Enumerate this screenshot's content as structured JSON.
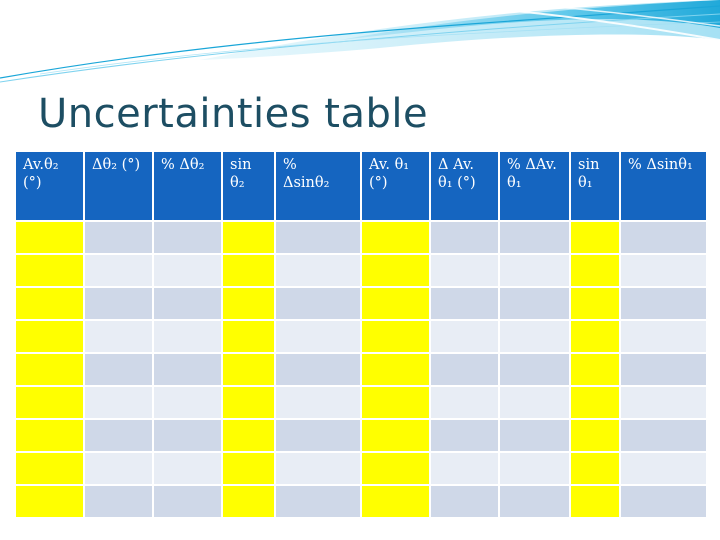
{
  "slide": {
    "title": "Uncertainties table"
  },
  "table": {
    "headers": [
      {
        "line1": "Av.θ₂",
        "line2": "(°)"
      },
      {
        "line1": "Δθ₂ (°)",
        "line2": ""
      },
      {
        "line1": "% Δθ₂",
        "line2": ""
      },
      {
        "line1": "sin",
        "line2": "θ₂"
      },
      {
        "line1": "%",
        "line2": "Δsinθ₂"
      },
      {
        "line1": "Av. θ₁",
        "line2": "(°)"
      },
      {
        "line1": "Δ Av.",
        "line2": "θ₁ (°)"
      },
      {
        "line1": "% ΔAv.",
        "line2": "θ₁"
      },
      {
        "line1": "sin",
        "line2": "θ₁"
      },
      {
        "line1": "% Δsinθ₁",
        "line2": ""
      }
    ],
    "highlight_columns": [
      0,
      3,
      5,
      8
    ],
    "empty_row_count": 9
  },
  "colors": {
    "header_bg": "#1565c0",
    "header_text": "#ffffff",
    "highlight": "#ffff00",
    "row_dark": "#cfd8e8",
    "row_light": "#e8edf5",
    "title": "#1d4e63",
    "banner": "#1aa6d8"
  }
}
